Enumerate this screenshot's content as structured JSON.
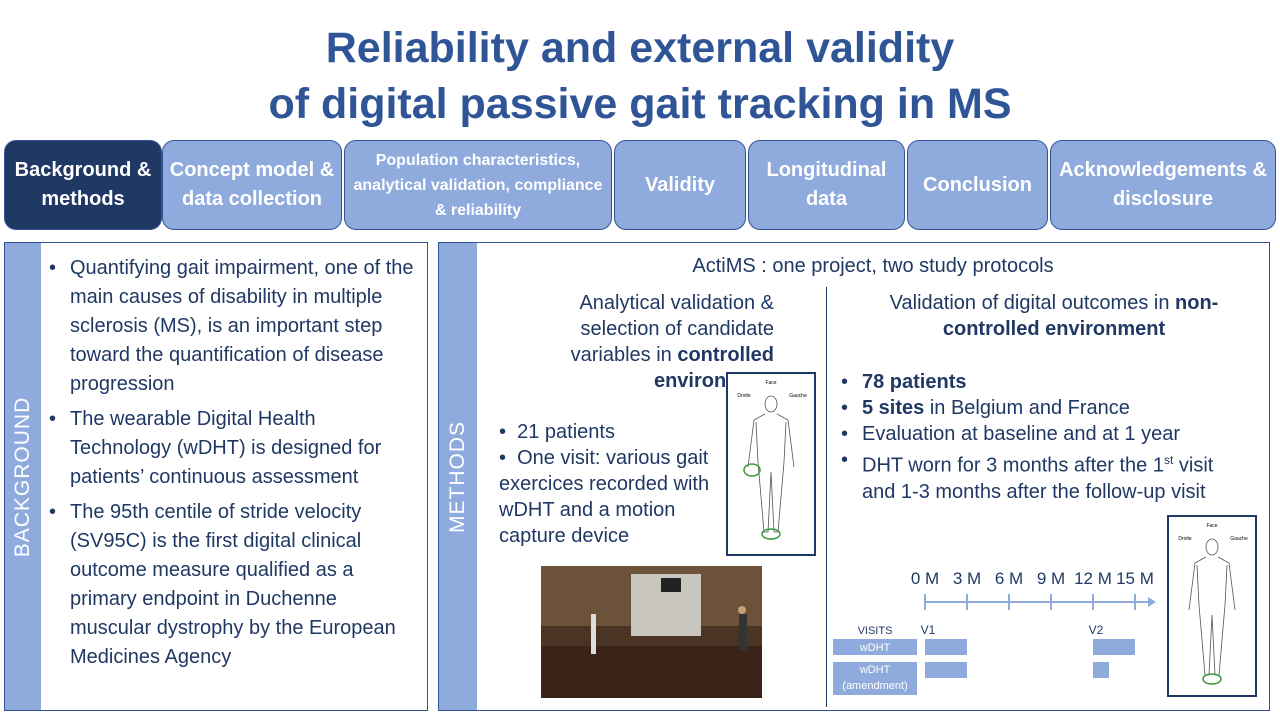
{
  "title": [
    "Reliability and external validity",
    "of digital passive gait tracking in MS"
  ],
  "tabs": [
    "Background & methods",
    "Concept model & data collection",
    "Population characteristics, analytical validation, compliance & reliability",
    "Validity",
    "Longitudinal data",
    "Conclusion",
    "Acknowledgements & disclosure"
  ],
  "background": {
    "label": "BACKGROUND",
    "bullets": [
      "Quantifying gait impairment, one of the main causes of disability in multiple sclerosis (MS), is an important step toward the quantification of disease progression",
      "The wearable Digital Health Technology (wDHT) is designed for patients’ continuous assessment",
      "The 95th centile of stride velocity (SV95C) is the first digital clinical outcome measure qualified as a primary endpoint in Duchenne muscular dystrophy by the European Medicines Agency"
    ]
  },
  "methods": {
    "label": "METHODS",
    "heading": "ActiMS : one project, two study protocols",
    "controlled": {
      "heading": [
        "Analytical validation & selection of candidate variables in ",
        {
          "bold": "controlled environment"
        }
      ],
      "bullets": [
        "21 patients",
        "One visit: various gait exercices recorded with wDHT and a motion capture device"
      ]
    },
    "non_controlled": {
      "heading": [
        "Validation of digital outcomes in ",
        {
          "bold": "non-controlled environment"
        }
      ],
      "bullets": [
        [
          {
            "bold": "78 patients"
          }
        ],
        [
          {
            "bold": "5 sites"
          },
          " in Belgium and France"
        ],
        [
          "Evaluation at baseline and at 1 year"
        ],
        [
          "DHT worn for 3 months after the 1",
          {
            "sup": "st"
          },
          " visit and 1-3 months after the follow-up visit"
        ]
      ]
    },
    "figure_labels": {
      "front": "Face",
      "right": "Droite",
      "left": "Gauche"
    },
    "timeline": {
      "months": [
        "0 M",
        "3 M",
        "6 M",
        "9 M",
        "12 M",
        "15 M"
      ],
      "rows": [
        "VISITS",
        "wDHT",
        "wDHT (amendment)"
      ],
      "visits": [
        "V1",
        "V2"
      ]
    }
  }
}
